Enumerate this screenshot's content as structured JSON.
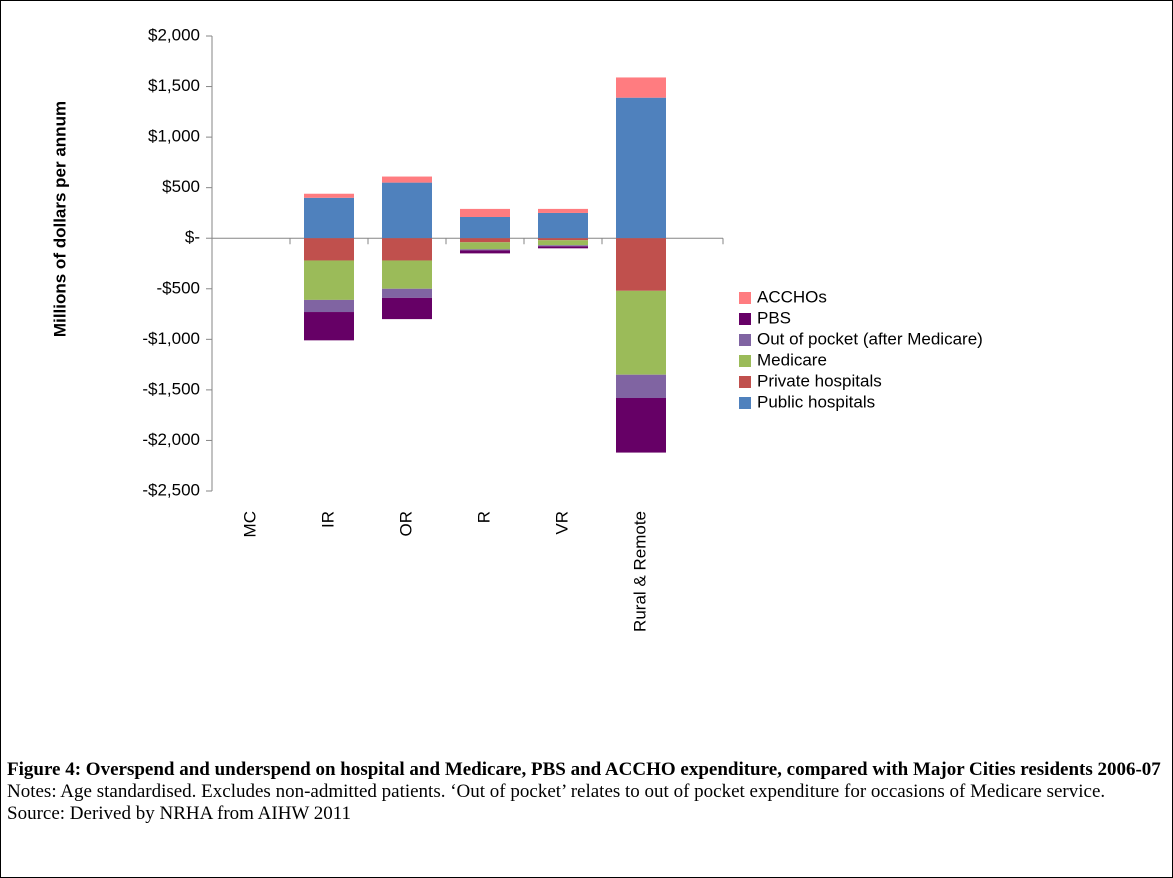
{
  "chart_data": {
    "type": "stacked-bar",
    "y_label": "Millions of dollars per annum",
    "categories": [
      "MC",
      "IR",
      "OR",
      "R",
      "VR",
      "Rural & Remote"
    ],
    "series": [
      {
        "name": "Public hospitals",
        "color": "#4f81bd",
        "values": [
          0,
          400,
          550,
          210,
          250,
          1390
        ]
      },
      {
        "name": "Private hospitals",
        "color": "#c0504d",
        "values": [
          0,
          -220,
          -220,
          -40,
          -20,
          -520
        ]
      },
      {
        "name": "Medicare",
        "color": "#9bbb59",
        "values": [
          0,
          -390,
          -280,
          -70,
          -50,
          -830
        ]
      },
      {
        "name": "Out of pocket (after Medicare)",
        "color": "#8064a2",
        "values": [
          0,
          -120,
          -90,
          -10,
          -10,
          -230
        ]
      },
      {
        "name": "PBS",
        "color": "#660066",
        "values": [
          0,
          -280,
          -210,
          -30,
          -20,
          -540
        ]
      },
      {
        "name": "ACCHOs",
        "color": "#ff7c80",
        "values": [
          0,
          40,
          60,
          80,
          40,
          200
        ]
      }
    ],
    "ylim": [
      -2500,
      2000
    ],
    "yticks": [
      {
        "value": 2000,
        "label": "$2,000"
      },
      {
        "value": 1500,
        "label": "$1,500"
      },
      {
        "value": 1000,
        "label": "$1,000"
      },
      {
        "value": 500,
        "label": "$500"
      },
      {
        "value": 0,
        "label": "$-"
      },
      {
        "value": -500,
        "label": "-$500"
      },
      {
        "value": -1000,
        "label": "-$1,000"
      },
      {
        "value": -1500,
        "label": "-$1,500"
      },
      {
        "value": -2000,
        "label": "-$2,000"
      },
      {
        "value": -2500,
        "label": "-$2,500"
      }
    ]
  },
  "caption": {
    "title": "Figure 4: Overspend and underspend on hospital and Medicare, PBS and ACCHO expenditure, compared with Major Cities residents 2006-07",
    "notes": "Notes: Age standardised. Excludes non-admitted patients. ‘Out of pocket’ relates to out of pocket expenditure for occasions of Medicare service.",
    "source": "Source: Derived by NRHA from AIHW 2011"
  }
}
